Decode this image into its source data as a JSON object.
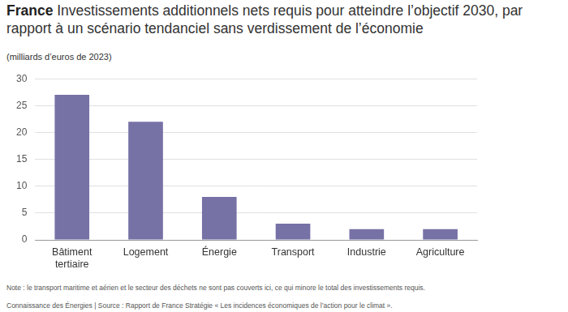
{
  "chart_data": {
    "type": "bar",
    "title": "France",
    "subtitle": "Investissements additionnels nets requis pour atteindre l’objectif 2030, par rapport à un scénario tendanciel sans verdissement de l’économie",
    "ylabel": "(milliards d’euros de 2023)",
    "categories": [
      "Bâtiment tertiaire",
      "Logement",
      "Énergie",
      "Transport",
      "Industrie",
      "Agriculture"
    ],
    "values": [
      27,
      22,
      8,
      3,
      2,
      2
    ],
    "color": "#7672a6",
    "ylim": [
      0,
      30
    ],
    "yticks": [
      0,
      5,
      10,
      15,
      20,
      25,
      30
    ],
    "grid": true,
    "note": "Note : le transport maritime et aérien et le secteur des déchets ne sont pas couverts ici, ce qui minore le total des investissements requis.",
    "source": "Connaissance des Énergies | Source : Rapport de France Stratégie « Les incidences économiques de l’action pour le climat »."
  }
}
